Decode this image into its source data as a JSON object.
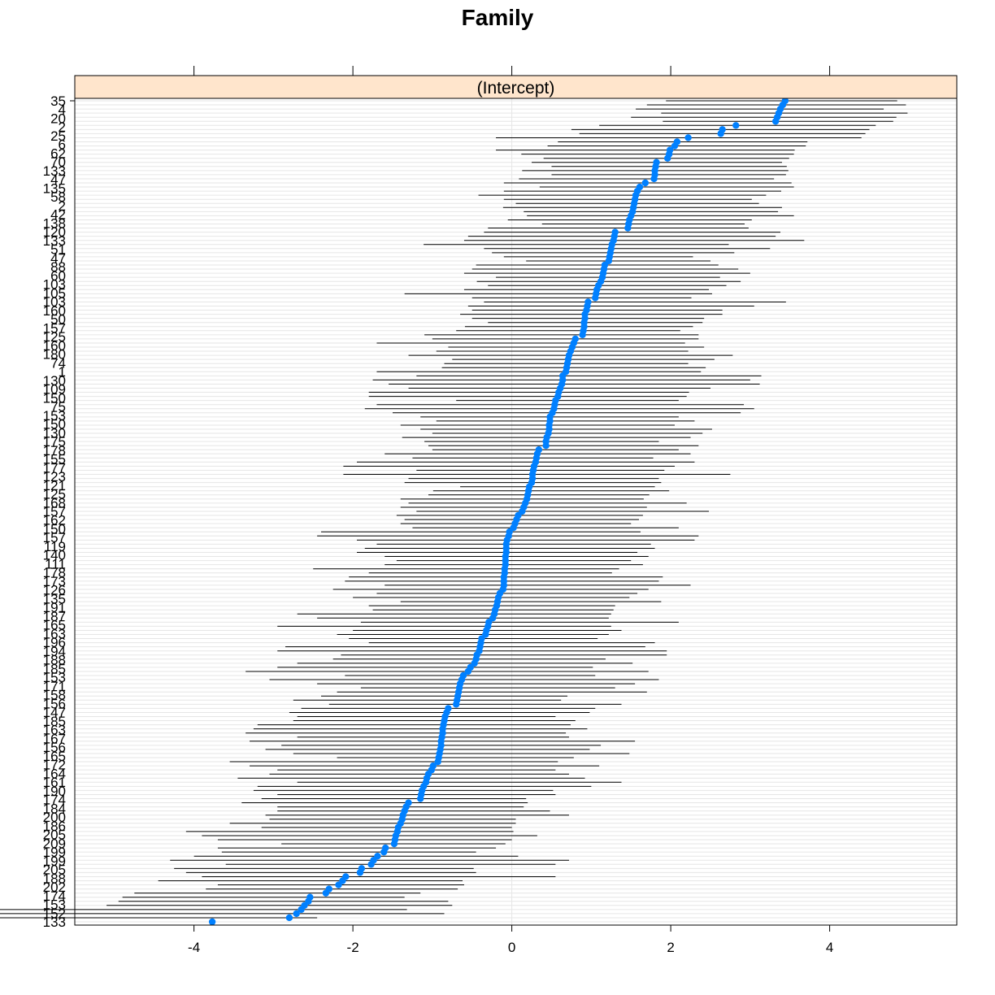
{
  "chart_data": {
    "type": "dotplot",
    "title": "Family",
    "panel_label": "(Intercept)",
    "xlabel": "",
    "ylabel": "",
    "xlim": [
      -5.5,
      5.6
    ],
    "x_ticks": [
      -4,
      -2,
      0,
      2,
      4
    ],
    "n_levels": 200,
    "visible_level_labels": [
      "35",
      "4",
      "20",
      "2",
      "25",
      "6",
      "62",
      "70",
      "133",
      "47",
      "135",
      "58",
      "2",
      "42",
      "138",
      "120",
      "133",
      "51",
      "47",
      "88",
      "60",
      "103",
      "105",
      "103",
      "160",
      "50",
      "157",
      "125",
      "160",
      "180",
      "74",
      "1",
      "130",
      "109",
      "150",
      "75",
      "153",
      "150",
      "130",
      "175",
      "178",
      "155",
      "177",
      "123",
      "121",
      "125",
      "168",
      "157",
      "162",
      "150",
      "157",
      "119",
      "140",
      "111",
      "178",
      "173",
      "126",
      "135",
      "191",
      "187",
      "165",
      "163",
      "196",
      "194",
      "188",
      "185",
      "153",
      "171",
      "158",
      "156",
      "147",
      "185",
      "163",
      "167",
      "156",
      "165",
      "172",
      "164",
      "161",
      "190",
      "174",
      "184",
      "200",
      "186",
      "205",
      "209",
      "199",
      "199",
      "205",
      "188",
      "202",
      "174",
      "153",
      "152",
      "133"
    ],
    "point_color": "#0080FF",
    "errorbar_color": "#000000",
    "strip_color": "#FFE5CC",
    "gridlines": true,
    "series": [
      {
        "name": "",
        "values": [
          3.44,
          3.41,
          3.38,
          3.36,
          3.34,
          3.32,
          2.82,
          2.65,
          2.63,
          2.22,
          2.08,
          2.05,
          1.99,
          1.98,
          1.96,
          1.82,
          1.81,
          1.8,
          1.8,
          1.79,
          1.68,
          1.61,
          1.58,
          1.56,
          1.55,
          1.54,
          1.53,
          1.52,
          1.5,
          1.48,
          1.47,
          1.46,
          1.3,
          1.29,
          1.28,
          1.26,
          1.25,
          1.24,
          1.23,
          1.22,
          1.17,
          1.16,
          1.15,
          1.14,
          1.12,
          1.09,
          1.07,
          1.06,
          1.05,
          0.96,
          0.95,
          0.94,
          0.92,
          0.92,
          0.91,
          0.91,
          0.9,
          0.89,
          0.8,
          0.78,
          0.76,
          0.74,
          0.72,
          0.71,
          0.7,
          0.69,
          0.68,
          0.64,
          0.64,
          0.63,
          0.61,
          0.59,
          0.58,
          0.55,
          0.54,
          0.53,
          0.51,
          0.48,
          0.48,
          0.47,
          0.47,
          0.46,
          0.44,
          0.43,
          0.43,
          0.34,
          0.32,
          0.31,
          0.3,
          0.28,
          0.27,
          0.26,
          0.26,
          0.25,
          0.22,
          0.21,
          0.2,
          0.19,
          0.17,
          0.15,
          0.13,
          0.08,
          0.06,
          0.04,
          0.02,
          -0.03,
          -0.04,
          -0.06,
          -0.07,
          -0.07,
          -0.07,
          -0.08,
          -0.08,
          -0.08,
          -0.09,
          -0.09,
          -0.1,
          -0.1,
          -0.1,
          -0.11,
          -0.15,
          -0.17,
          -0.18,
          -0.19,
          -0.21,
          -0.22,
          -0.24,
          -0.29,
          -0.3,
          -0.32,
          -0.33,
          -0.38,
          -0.39,
          -0.4,
          -0.41,
          -0.44,
          -0.45,
          -0.47,
          -0.52,
          -0.55,
          -0.61,
          -0.63,
          -0.65,
          -0.66,
          -0.67,
          -0.68,
          -0.69,
          -0.7,
          -0.8,
          -0.82,
          -0.84,
          -0.85,
          -0.86,
          -0.87,
          -0.87,
          -0.88,
          -0.89,
          -0.89,
          -0.9,
          -0.91,
          -0.92,
          -0.93,
          -0.99,
          -1.01,
          -1.05,
          -1.07,
          -1.08,
          -1.11,
          -1.13,
          -1.14,
          -1.15,
          -1.3,
          -1.33,
          -1.35,
          -1.37,
          -1.38,
          -1.4,
          -1.43,
          -1.44,
          -1.46,
          -1.47,
          -1.48,
          -1.59,
          -1.61,
          -1.69,
          -1.74,
          -1.77,
          -1.89,
          -1.91,
          -2.09,
          -2.13,
          -2.18,
          -2.3,
          -2.34,
          -2.54,
          -2.56,
          -2.61,
          -2.65,
          -2.71,
          -2.8,
          -3.77
        ]
      },
      {
        "name": "",
        "lower": [
          1.94,
          1.7,
          1.56,
          1.88,
          1.5,
          1.9,
          1.1,
          0.75,
          0.85,
          -0.2,
          0.58,
          0.45,
          -0.2,
          0.12,
          0.4,
          0.25,
          0.5,
          0.13,
          0.5,
          0.09,
          -0.1,
          0.35,
          -0.1,
          -0.42,
          -0.1,
          0.05,
          -0.11,
          0.15,
          0.19,
          -0.05,
          0.38,
          -0.3,
          -0.35,
          -0.55,
          -0.6,
          -1.11,
          -0.35,
          -0.25,
          -0.1,
          0.18,
          -0.45,
          -0.5,
          -0.6,
          -0.2,
          -0.44,
          -0.3,
          -0.6,
          -1.35,
          -0.5,
          -0.35,
          -0.55,
          -0.5,
          -0.65,
          -0.5,
          -0.3,
          -0.59,
          -0.7,
          -1.1,
          -1.0,
          -1.7,
          -0.8,
          -0.95,
          -1.3,
          -0.75,
          -0.85,
          -0.88,
          -1.7,
          -1.2,
          -1.75,
          -1.55,
          -1.3,
          -1.8,
          -1.8,
          -0.7,
          -1.7,
          -1.85,
          -1.5,
          -1.15,
          -0.95,
          -1.4,
          -1.15,
          -1.0,
          -1.38,
          -1.1,
          -1.05,
          -1.0,
          -1.6,
          -1.25,
          -1.95,
          -2.12,
          -1.2,
          -2.12,
          -1.3,
          -1.35,
          -0.65,
          -0.99,
          -1.05,
          -1.4,
          -1.3,
          -1.4,
          -1.2,
          -1.45,
          -1.35,
          -1.4,
          -1.25,
          -2.4,
          -2.45,
          -1.95,
          -1.7,
          -1.85,
          -1.95,
          -1.6,
          -1.45,
          -1.6,
          -2.5,
          -1.8,
          -2.05,
          -2.1,
          -1.6,
          -2.25,
          -1.7,
          -2.0,
          -1.4,
          -1.8,
          -1.75,
          -2.7,
          -2.45,
          -1.9,
          -2.95,
          -2.0,
          -2.2,
          -2.05,
          -1.8,
          -2.85,
          -2.95,
          -2.15,
          -2.25,
          -2.7,
          -2.95,
          -3.35,
          -2.1,
          -3.05,
          -2.45,
          -1.9,
          -2.2,
          -2.4,
          -2.75,
          -2.3,
          -2.65,
          -2.8,
          -2.7,
          -2.75,
          -3.2,
          -3.25,
          -3.35,
          -2.7,
          -3.3,
          -2.9,
          -3.1,
          -2.75,
          -2.2,
          -3.55,
          -3.3,
          -2.95,
          -3.05,
          -3.45,
          -2.7,
          -3.2,
          -3.25,
          -2.95,
          -3.15,
          -3.4,
          -2.95,
          -2.95,
          -3.1,
          -3.05,
          -3.55,
          -3.15,
          -4.1,
          -3.9,
          -3.7,
          -2.9,
          -3.7,
          -3.65,
          -4.0,
          -4.3,
          -3.6,
          -4.25,
          -4.1,
          -3.9,
          -4.45,
          -3.7,
          -3.85,
          -4.75,
          -4.9,
          -4.95,
          -5.1
        ]
      },
      {
        "name": "",
        "upper": [
          4.85,
          4.96,
          4.68,
          4.98,
          4.84,
          4.8,
          4.58,
          4.5,
          4.45,
          4.4,
          3.72,
          3.7,
          3.56,
          3.55,
          3.49,
          3.4,
          3.46,
          3.48,
          3.45,
          3.3,
          3.52,
          3.55,
          3.39,
          3.2,
          3.02,
          3.11,
          3.4,
          3.35,
          3.55,
          3.02,
          2.93,
          2.98,
          3.38,
          3.32,
          3.68,
          2.73,
          3.25,
          2.8,
          2.28,
          2.5,
          2.6,
          2.85,
          3.0,
          2.62,
          2.88,
          2.7,
          2.48,
          2.52,
          2.26,
          3.45,
          3.05,
          2.65,
          2.65,
          2.42,
          2.4,
          2.28,
          2.12,
          2.35,
          2.35,
          2.18,
          2.42,
          2.22,
          2.78,
          2.55,
          2.22,
          2.44,
          2.38,
          3.14,
          3.0,
          3.12,
          2.5,
          2.23,
          2.2,
          2.1,
          2.92,
          3.05,
          2.88,
          2.1,
          2.3,
          2.05,
          2.52,
          2.4,
          2.25,
          1.85,
          2.35,
          2.1,
          2.25,
          1.78,
          2.3,
          2.05,
          1.92,
          2.75,
          1.85,
          1.88,
          1.8,
          1.98,
          1.73,
          1.66,
          2.2,
          1.7,
          2.48,
          1.65,
          1.6,
          1.5,
          2.1,
          1.62,
          2.35,
          2.3,
          1.75,
          1.8,
          1.58,
          1.72,
          1.5,
          1.65,
          1.35,
          1.26,
          1.9,
          1.85,
          2.25,
          1.72,
          1.58,
          1.48,
          1.88,
          1.3,
          1.28,
          1.25,
          1.22,
          2.1,
          1.25,
          1.38,
          1.22,
          1.08,
          1.8,
          1.68,
          1.95,
          1.95,
          1.18,
          1.52,
          1.02,
          1.72,
          1.05,
          1.85,
          1.55,
          1.3,
          1.7,
          0.7,
          0.62,
          1.38,
          1.05,
          0.98,
          0.55,
          0.8,
          0.74,
          0.95,
          0.68,
          0.72,
          1.55,
          1.12,
          0.98,
          1.48,
          0.78,
          0.58,
          1.1,
          0.55,
          0.72,
          0.92,
          1.38,
          1.0,
          0.52,
          0.55,
          0.18,
          0.2,
          0.15,
          0.48,
          0.72,
          0.05,
          0.05,
          0.0,
          0.02,
          0.32,
          0.0,
          -0.08,
          -0.2,
          -0.45,
          0.08,
          0.72,
          0.55,
          -0.48,
          -0.45,
          0.55,
          -0.62,
          -0.6,
          -0.68,
          -1.15,
          -1.35,
          -0.8,
          -0.75,
          -1.32,
          -0.85,
          -2.45
        ]
      }
    ]
  }
}
